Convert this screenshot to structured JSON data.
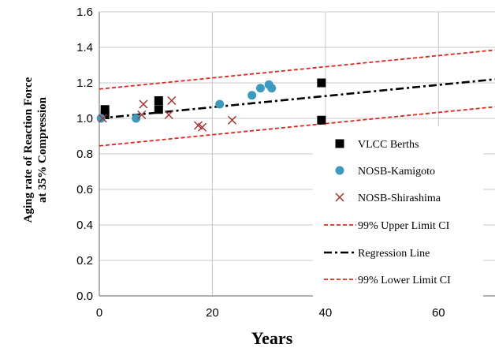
{
  "chart_data": {
    "type": "scatter",
    "title": "",
    "xlabel": "Years",
    "ylabel": "Aging rate of Reaction Force at 35% Compression",
    "ylabel_lines": [
      "Aging rate of Reaction Force",
      "at 35% Compression"
    ],
    "xlim": [
      0,
      70
    ],
    "ylim": [
      0.0,
      1.6
    ],
    "x_ticks": [
      "0",
      "20",
      "40",
      "60"
    ],
    "x_tick_values": [
      0,
      20,
      40,
      60
    ],
    "y_ticks": [
      "0.0",
      "0.2",
      "0.4",
      "0.6",
      "0.8",
      "1.0",
      "1.2",
      "1.4",
      "1.6"
    ],
    "y_tick_values": [
      0.0,
      0.2,
      0.4,
      0.6,
      0.8,
      1.0,
      1.2,
      1.4,
      1.6
    ],
    "grid": true,
    "legend_position": "right",
    "series": [
      {
        "name": "VLCC Berths",
        "kind": "scatter",
        "marker": "square",
        "color": "#000000",
        "points": [
          [
            1,
            1.05
          ],
          [
            1,
            1.02
          ],
          [
            10.5,
            1.1
          ],
          [
            10.5,
            1.05
          ],
          [
            39.3,
            1.2
          ],
          [
            39.3,
            0.99
          ]
        ]
      },
      {
        "name": "NOSB-Kamigoto",
        "kind": "scatter",
        "marker": "circle",
        "color": "#3a9bbf",
        "points": [
          [
            0.3,
            1.0
          ],
          [
            6.5,
            1.0
          ],
          [
            21.3,
            1.08
          ],
          [
            27.0,
            1.13
          ],
          [
            28.5,
            1.17
          ],
          [
            30.0,
            1.19
          ],
          [
            30.5,
            1.17
          ]
        ]
      },
      {
        "name": "NOSB-Shirashima",
        "kind": "scatter",
        "marker": "x",
        "color": "#a83232",
        "points": [
          [
            0.6,
            1.0
          ],
          [
            7.5,
            1.02
          ],
          [
            7.8,
            1.08
          ],
          [
            12.3,
            1.02
          ],
          [
            12.8,
            1.1
          ],
          [
            17.5,
            0.96
          ],
          [
            18.2,
            0.95
          ],
          [
            23.5,
            0.99
          ]
        ]
      },
      {
        "name": "99% Upper Limit CI",
        "kind": "line",
        "style": "dashed",
        "color": "#e8231c",
        "points": [
          [
            0,
            1.165
          ],
          [
            70,
            1.385
          ]
        ]
      },
      {
        "name": "Regression Line",
        "kind": "line",
        "style": "dashdot",
        "color": "#000000",
        "points": [
          [
            0,
            1.0
          ],
          [
            70,
            1.22
          ]
        ]
      },
      {
        "name": "99% Lower Limit CI",
        "kind": "line",
        "style": "dashed",
        "color": "#e8231c",
        "points": [
          [
            0,
            0.845
          ],
          [
            70,
            1.065
          ]
        ]
      }
    ]
  }
}
